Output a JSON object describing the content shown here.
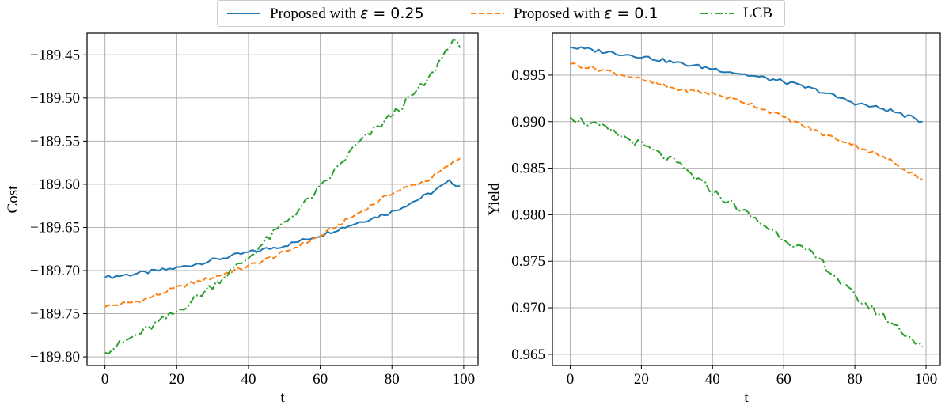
{
  "legend": {
    "items": [
      {
        "prefix": "Proposed with ",
        "eps": "ε",
        "suffix": " = 0.25",
        "color": "#1f77b4",
        "dash": "solid"
      },
      {
        "prefix": "Proposed with ",
        "eps": "ε",
        "suffix": " = 0.1",
        "color": "#ff7f0e",
        "dash": "dashed"
      },
      {
        "prefix": "",
        "eps": "",
        "suffix": "",
        "label": "LCB",
        "color": "#2ca02c",
        "dash": "dashdot"
      }
    ]
  },
  "chart_data": [
    {
      "type": "line",
      "xlabel": "t",
      "ylabel": "Cost",
      "xlim": [
        -5,
        104
      ],
      "ylim": [
        -189.81,
        -189.425
      ],
      "xticks": [
        0,
        20,
        40,
        60,
        80,
        100
      ],
      "yticks": [
        -189.8,
        -189.75,
        -189.7,
        -189.65,
        -189.6,
        -189.55,
        -189.5,
        -189.45
      ],
      "ytick_labels": [
        "−189.80",
        "−189.75",
        "−189.70",
        "−189.65",
        "−189.60",
        "−189.55",
        "−189.50",
        "−189.45"
      ],
      "grid": true,
      "series": [
        {
          "name": "Proposed with ε = 0.25",
          "color": "#1f77b4",
          "dash": "solid",
          "x": [
            0,
            10,
            20,
            30,
            40,
            50,
            60,
            70,
            80,
            90,
            96,
            99
          ],
          "y": [
            -189.708,
            -189.703,
            -189.697,
            -189.688,
            -189.679,
            -189.671,
            -189.659,
            -189.645,
            -189.632,
            -189.612,
            -189.597,
            -189.602
          ]
        },
        {
          "name": "Proposed with ε = 0.1",
          "color": "#ff7f0e",
          "dash": "dashed",
          "x": [
            0,
            10,
            20,
            30,
            40,
            50,
            60,
            70,
            80,
            90,
            99
          ],
          "y": [
            -189.742,
            -189.735,
            -189.72,
            -189.708,
            -189.695,
            -189.679,
            -189.66,
            -189.635,
            -189.61,
            -189.595,
            -189.57
          ]
        },
        {
          "name": "LCB",
          "color": "#2ca02c",
          "dash": "dashdot",
          "x": [
            0,
            10,
            20,
            30,
            40,
            50,
            60,
            70,
            80,
            90,
            97,
            99
          ],
          "y": [
            -189.795,
            -189.772,
            -189.748,
            -189.717,
            -189.685,
            -189.645,
            -189.605,
            -189.555,
            -189.52,
            -189.48,
            -189.432,
            -189.442
          ]
        }
      ]
    },
    {
      "type": "line",
      "xlabel": "t",
      "ylabel": "Yield",
      "xlim": [
        -5,
        104
      ],
      "ylim": [
        0.9638,
        0.9995
      ],
      "xticks": [
        0,
        20,
        40,
        60,
        80,
        100
      ],
      "yticks": [
        0.965,
        0.97,
        0.975,
        0.98,
        0.985,
        0.99,
        0.995
      ],
      "ytick_labels": [
        "0.965",
        "0.970",
        "0.975",
        "0.980",
        "0.985",
        "0.990",
        "0.995"
      ],
      "grid": true,
      "series": [
        {
          "name": "Proposed with ε = 0.25",
          "color": "#1f77b4",
          "dash": "solid",
          "x": [
            0,
            10,
            20,
            30,
            40,
            50,
            60,
            70,
            80,
            90,
            99
          ],
          "y": [
            0.998,
            0.9975,
            0.997,
            0.9963,
            0.9957,
            0.995,
            0.9943,
            0.9933,
            0.992,
            0.9912,
            0.99
          ]
        },
        {
          "name": "Proposed with ε = 0.1",
          "color": "#ff7f0e",
          "dash": "dashed",
          "x": [
            0,
            10,
            20,
            30,
            40,
            50,
            60,
            70,
            80,
            90,
            99
          ],
          "y": [
            0.9962,
            0.9955,
            0.9945,
            0.9935,
            0.993,
            0.992,
            0.9905,
            0.9888,
            0.9875,
            0.9858,
            0.9838
          ]
        },
        {
          "name": "LCB",
          "color": "#2ca02c",
          "dash": "dashdot",
          "x": [
            0,
            10,
            20,
            30,
            40,
            50,
            60,
            70,
            80,
            90,
            99
          ],
          "y": [
            0.9905,
            0.9892,
            0.9875,
            0.9855,
            0.9825,
            0.98,
            0.9775,
            0.9752,
            0.9712,
            0.9685,
            0.9658
          ]
        }
      ]
    }
  ]
}
